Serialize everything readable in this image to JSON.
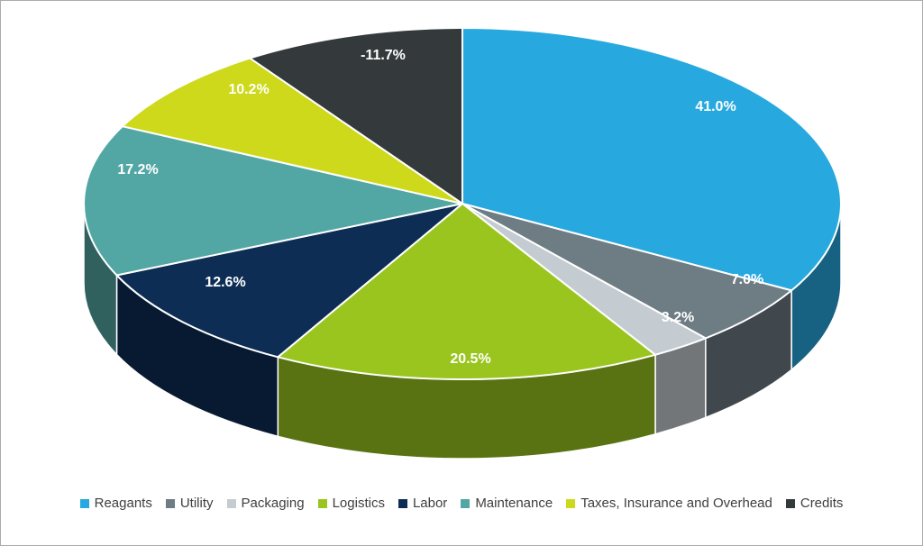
{
  "chart_data": {
    "type": "pie",
    "is_3d": true,
    "title": "",
    "categories": [
      "Reagants",
      "Utility",
      "Packaging",
      "Logistics",
      "Labor",
      "Maintenance",
      "Taxes, Insurance and Overhead",
      "Credits"
    ],
    "values": [
      41.0,
      7.0,
      3.2,
      20.5,
      12.6,
      17.2,
      10.2,
      -11.7
    ],
    "labels": [
      "41.0%",
      "7.0%",
      "3.2%",
      "20.5%",
      "12.6%",
      "17.2%",
      "10.2%",
      "-11.7%"
    ],
    "colors": [
      "#27A9E0",
      "#6E7C84",
      "#C4CCD1",
      "#9AC51F",
      "#0D2D55",
      "#52A7A4",
      "#CDD91A",
      "#343A3C"
    ],
    "label_color": "#FFFFFF",
    "slice_border_color": "#FFFFFF",
    "legend_text_color": "#3F3F3F",
    "start_angle_deg": 0,
    "direction": "clockwise",
    "legend_position": "bottom",
    "label_format": "percent"
  }
}
